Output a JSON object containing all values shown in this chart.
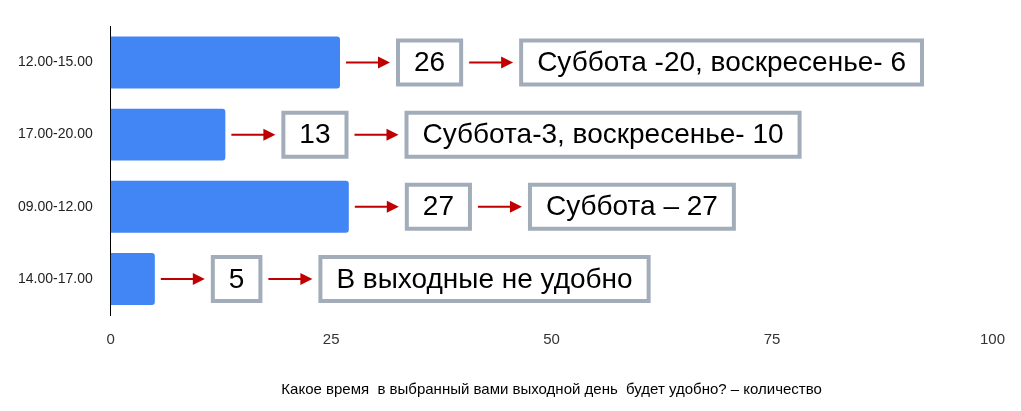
{
  "chart_data": {
    "type": "bar",
    "orientation": "horizontal",
    "xlabel": "Какое время  в выбранный вами выходной день  будет удобно? – количество",
    "categories": [
      "12.00-15.00",
      "17.00-20.00",
      "09.00-12.00",
      "14.00-17.00"
    ],
    "values": [
      26,
      13,
      27,
      5
    ],
    "color": "#4285f4",
    "xlim": [
      0,
      100
    ],
    "xticks": [
      0,
      25,
      50,
      75,
      100
    ],
    "grid": false,
    "legend": false,
    "data_labels": true,
    "annotations": [
      "Суббота -20, воскресенье- 6",
      "Суббота-3, воскресенье- 10",
      "Суббота – 27",
      "В выходные не удобно"
    ]
  }
}
